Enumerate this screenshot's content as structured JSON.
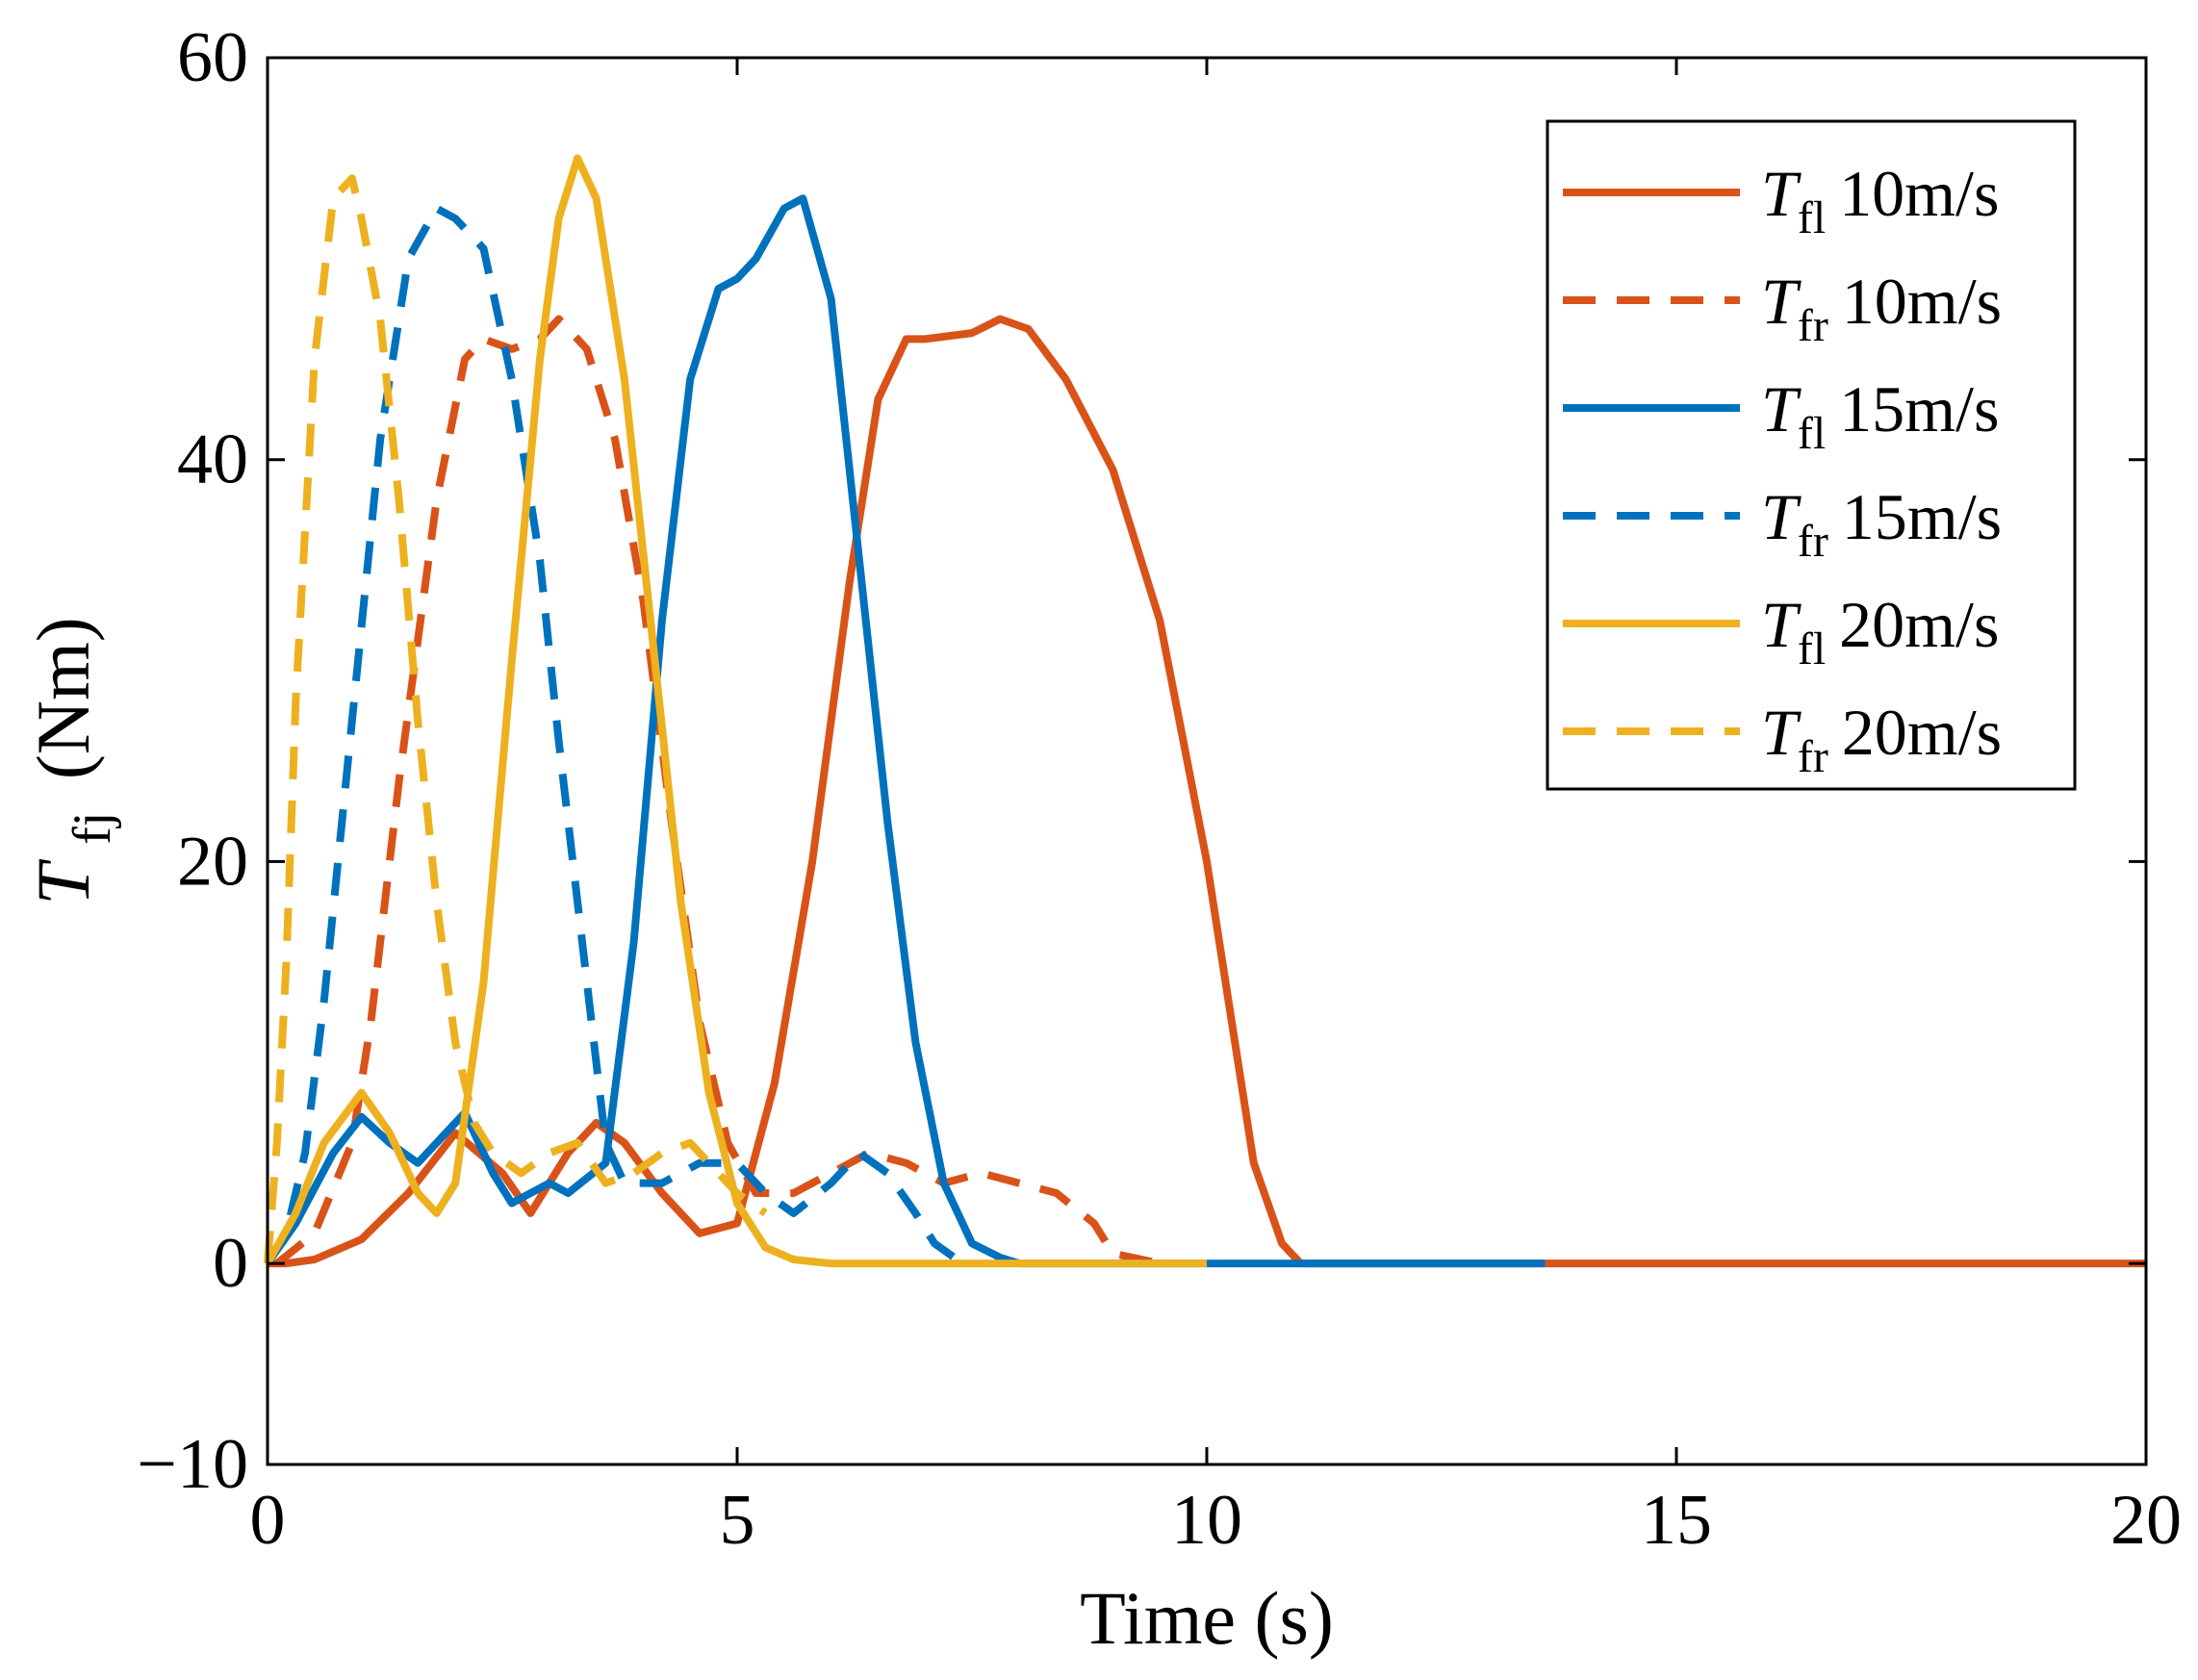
{
  "chart_data": {
    "type": "line",
    "xlabel": "Time (s)",
    "ylabel": {
      "symbol": "T",
      "subscript": "fj",
      "unit": "(Nm)"
    },
    "xlim": [
      0,
      20
    ],
    "ylim": [
      -10,
      60
    ],
    "xticks": [
      0,
      5,
      10,
      15,
      20
    ],
    "xtick_labels": [
      "0",
      "5",
      "10",
      "15",
      "20"
    ],
    "yticks": [
      -10,
      0,
      20,
      40,
      60
    ],
    "ytick_labels": [
      "−10",
      "0",
      "20",
      "40",
      "60"
    ],
    "grid": false,
    "legend_position": "top-right",
    "series": [
      {
        "name": "T fl 10m/s",
        "symbol": "T",
        "subscript": "fl",
        "speed": "10m/s",
        "color": "#D95319",
        "dash": "solid",
        "x": [
          0,
          0.2,
          0.5,
          1.0,
          1.5,
          2.0,
          2.5,
          2.8,
          3.2,
          3.5,
          3.8,
          4.2,
          4.6,
          5.0,
          5.4,
          5.8,
          6.2,
          6.5,
          6.8,
          7.0,
          7.5,
          7.8,
          8.1,
          8.5,
          9.0,
          9.5,
          10.0,
          10.2,
          10.5,
          10.8,
          11.0,
          13.6,
          20.0
        ],
        "y": [
          0,
          0,
          0.2,
          1.2,
          3.5,
          6.5,
          4.5,
          2.5,
          5.5,
          7.0,
          6.0,
          3.5,
          1.5,
          2.0,
          9.0,
          20.0,
          34.0,
          43.0,
          46.0,
          46.0,
          46.3,
          47.0,
          46.5,
          44.0,
          39.5,
          32.0,
          20.0,
          14.0,
          5.0,
          1.0,
          0,
          0,
          0
        ]
      },
      {
        "name": "T fr 10m/s",
        "symbol": "T",
        "subscript": "fr",
        "speed": "10m/s",
        "color": "#D95319",
        "dash": "dashed",
        "x": [
          0.1,
          0.5,
          0.9,
          1.1,
          1.4,
          1.8,
          2.1,
          2.3,
          2.6,
          2.9,
          3.1,
          3.4,
          3.7,
          4.0,
          4.3,
          4.6,
          4.9,
          5.2,
          5.6,
          6.0,
          6.4,
          6.8,
          7.2,
          7.6,
          8.0,
          8.4,
          8.8,
          9.0,
          9.5
        ],
        "y": [
          0,
          1.5,
          6.0,
          12.0,
          24.0,
          38.0,
          45.0,
          46.0,
          45.5,
          46.0,
          47.0,
          45.5,
          41.0,
          33.0,
          22.0,
          12.0,
          6.0,
          3.5,
          3.5,
          4.5,
          5.5,
          5.0,
          4.0,
          4.5,
          4.0,
          3.5,
          2.0,
          0.5,
          0
        ]
      },
      {
        "name": "T fl 15m/s",
        "symbol": "T",
        "subscript": "fl",
        "speed": "15m/s",
        "color": "#0072BD",
        "dash": "solid",
        "x": [
          0,
          0.3,
          0.7,
          1.0,
          1.3,
          1.6,
          1.9,
          2.1,
          2.4,
          2.6,
          2.8,
          3.0,
          3.2,
          3.6,
          3.9,
          4.2,
          4.5,
          4.8,
          5.0,
          5.2,
          5.5,
          5.7,
          6.0,
          6.3,
          6.6,
          6.9,
          7.2,
          7.5,
          7.8,
          8.0,
          8.5,
          13.6
        ],
        "y": [
          0,
          2.0,
          5.5,
          7.3,
          6.0,
          5.0,
          6.5,
          7.5,
          4.5,
          3.0,
          3.5,
          4.0,
          3.5,
          5.0,
          16.0,
          32.0,
          44.0,
          48.5,
          49.0,
          50.0,
          52.5,
          53.0,
          48.0,
          35.0,
          22.0,
          11.0,
          4.0,
          1.0,
          0.3,
          0,
          0,
          0
        ]
      },
      {
        "name": "T fr 15m/s",
        "symbol": "T",
        "subscript": "fr",
        "speed": "15m/s",
        "color": "#0072BD",
        "dash": "dashed",
        "x": [
          0,
          0.2,
          0.4,
          0.6,
          0.9,
          1.2,
          1.5,
          1.8,
          2.0,
          2.3,
          2.6,
          2.9,
          3.1,
          3.3,
          3.5,
          3.6,
          3.8,
          4.2,
          4.6,
          5.0,
          5.3,
          5.6,
          6.0,
          6.3,
          6.6,
          6.9,
          7.1,
          7.4
        ],
        "y": [
          0,
          1.5,
          5.5,
          13.0,
          27.0,
          41.0,
          50.0,
          52.5,
          52.0,
          50.5,
          44.0,
          35.0,
          26.0,
          18.0,
          10.0,
          6.0,
          4.0,
          4.0,
          5.0,
          5.0,
          3.5,
          2.5,
          4.0,
          5.5,
          4.5,
          2.5,
          1.0,
          0
        ]
      },
      {
        "name": "T fl 20m/s",
        "symbol": "T",
        "subscript": "fl",
        "speed": "20m/s",
        "color": "#EDB120",
        "dash": "solid",
        "x": [
          0,
          0.3,
          0.6,
          1.0,
          1.3,
          1.6,
          1.8,
          2.0,
          2.3,
          2.6,
          2.9,
          3.1,
          3.3,
          3.5,
          3.8,
          4.1,
          4.4,
          4.7,
          5.0,
          5.3,
          5.6,
          6.0,
          7.0,
          10.0
        ],
        "y": [
          0,
          2.5,
          6.0,
          8.5,
          6.5,
          3.5,
          2.5,
          4.0,
          14.0,
          30.0,
          45.0,
          52.0,
          55.0,
          53.0,
          44.0,
          31.0,
          18.0,
          8.5,
          3.0,
          0.8,
          0.2,
          0,
          0,
          0
        ]
      },
      {
        "name": "T fr 20m/s",
        "symbol": "T",
        "subscript": "fr",
        "speed": "20m/s",
        "color": "#EDB120",
        "dash": "dashed",
        "x": [
          0,
          0.1,
          0.2,
          0.3,
          0.5,
          0.7,
          0.9,
          1.0,
          1.2,
          1.4,
          1.6,
          1.8,
          2.0,
          2.2,
          2.4,
          2.7,
          3.0,
          3.3,
          3.6,
          3.9,
          4.2,
          4.5,
          4.8,
          5.0,
          5.3
        ],
        "y": [
          0,
          6.0,
          15.0,
          28.0,
          45.0,
          53.0,
          54.0,
          52.0,
          47.0,
          38.0,
          27.0,
          18.0,
          11.0,
          7.0,
          5.5,
          4.5,
          5.5,
          6.0,
          4.0,
          4.5,
          5.5,
          6.0,
          4.5,
          3.5,
          2.5
        ]
      }
    ]
  }
}
